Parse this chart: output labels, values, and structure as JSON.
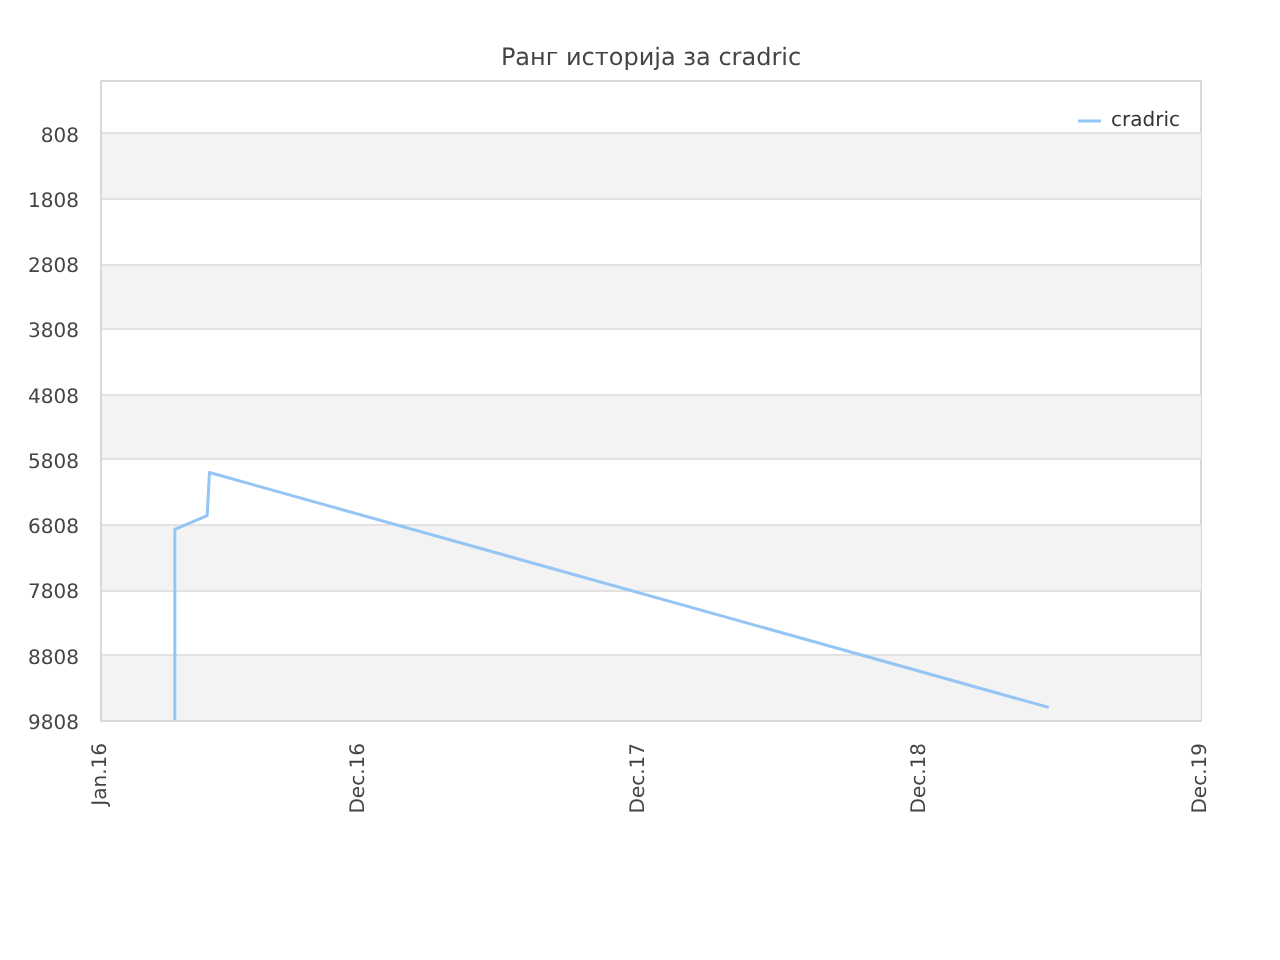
{
  "chart_data": {
    "type": "line",
    "title": "Ранг историја за cradric",
    "x": [
      "2016-04-06",
      "2016-04-06",
      "2016-05-18",
      "2016-05-21",
      "2019-05-17"
    ],
    "series": [
      {
        "name": "cradric",
        "color": "#95c5f5",
        "values": [
          9808,
          6870,
          6660,
          6000,
          9600
        ]
      }
    ],
    "xlim": [
      "2016-01-01",
      "2019-12-01"
    ],
    "xticks": [
      {
        "value": "2016-01-01",
        "label": "Jan.16"
      },
      {
        "value": "2016-12-01",
        "label": "Dec.16"
      },
      {
        "value": "2017-12-01",
        "label": "Dec.17"
      },
      {
        "value": "2018-12-01",
        "label": "Dec.18"
      },
      {
        "value": "2019-12-01",
        "label": "Dec.19"
      }
    ],
    "ylim": [
      9808,
      0
    ],
    "yticks": [
      808,
      1808,
      2808,
      3808,
      4808,
      5808,
      6808,
      7808,
      8808,
      9808
    ],
    "grid": "y",
    "legend": "top right",
    "marker": "none",
    "line_style": "solid"
  }
}
